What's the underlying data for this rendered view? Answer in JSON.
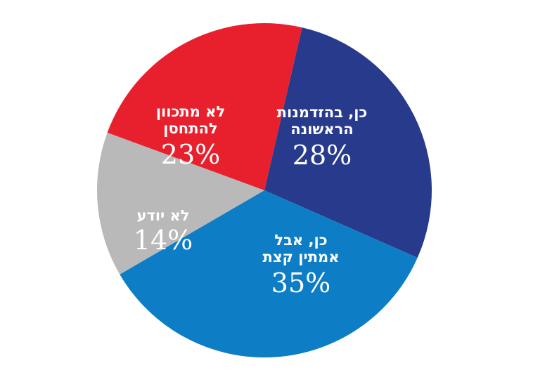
{
  "chart_data": {
    "type": "pie",
    "start_angle_deg": 13,
    "slices": [
      {
        "label_line1": "כן, בהזדמנות",
        "label_line2": "הראשונה",
        "percent_text": "28%",
        "value": 28,
        "color": "#283a8c"
      },
      {
        "label_line1": "כן, אבל",
        "label_line2": "אמתין קצת",
        "percent_text": "35%",
        "value": 35,
        "color": "#0d7dc6"
      },
      {
        "label_line1": "לא יודע",
        "label_line2": "",
        "percent_text": "14%",
        "value": 14,
        "color": "#b9b9b9"
      },
      {
        "label_line1": "לא מתכוון",
        "label_line2": "להתחסן",
        "percent_text": "23%",
        "value": 23,
        "color": "#e8202d"
      }
    ]
  }
}
